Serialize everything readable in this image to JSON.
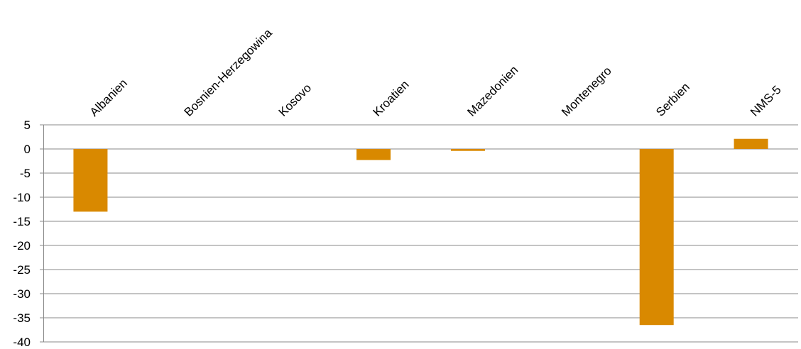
{
  "chart_data": {
    "type": "bar",
    "title": "",
    "xlabel": "",
    "ylabel": "",
    "categories": [
      "Albanien",
      "Bosnien-Herzegowina",
      "Kosovo",
      "Kroatien",
      "Mazedonien",
      "Montenegro",
      "Serbien",
      "NMS-5"
    ],
    "series": [
      {
        "values": [
          -13.0,
          0,
          0,
          -2.3,
          -0.4,
          0,
          -36.5,
          2.1
        ],
        "color": "#D98900"
      }
    ],
    "ylim": [
      -40,
      5
    ],
    "yticks": [
      5,
      0,
      -5,
      -10,
      -15,
      -20,
      -25,
      -30,
      -35,
      -40
    ],
    "ytick_labels": [
      "5",
      "0",
      "-5",
      "-10",
      "-15",
      "-20",
      "-25",
      "-30",
      "-35",
      "-40"
    ],
    "grid": true,
    "category_label_position": "top",
    "category_label_rotation_deg": -45,
    "colors": {
      "bar": "#D98900",
      "grid": "#888888",
      "axis": "#888888",
      "text": "#000000"
    }
  }
}
